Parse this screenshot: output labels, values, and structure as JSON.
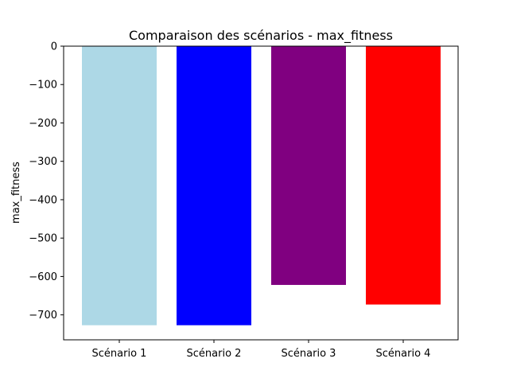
{
  "chart_data": {
    "type": "bar",
    "title": "Comparaison des scénarios - max_fitness",
    "xlabel": "",
    "ylabel": "max_fitness",
    "categories": [
      "Scénario 1",
      "Scénario 2",
      "Scénario 3",
      "Scénario 4"
    ],
    "values": [
      -727,
      -727,
      -622,
      -673
    ],
    "colors": [
      "#add8e6",
      "#0000ff",
      "#800080",
      "#ff0000"
    ],
    "ylim": [
      -765,
      0
    ],
    "yticks": [
      0,
      -100,
      -200,
      -300,
      -400,
      -500,
      -600,
      -700
    ],
    "ytick_labels": [
      "0",
      "−100",
      "−200",
      "−300",
      "−400",
      "−500",
      "−600",
      "−700"
    ],
    "grid": false,
    "legend": "none"
  }
}
